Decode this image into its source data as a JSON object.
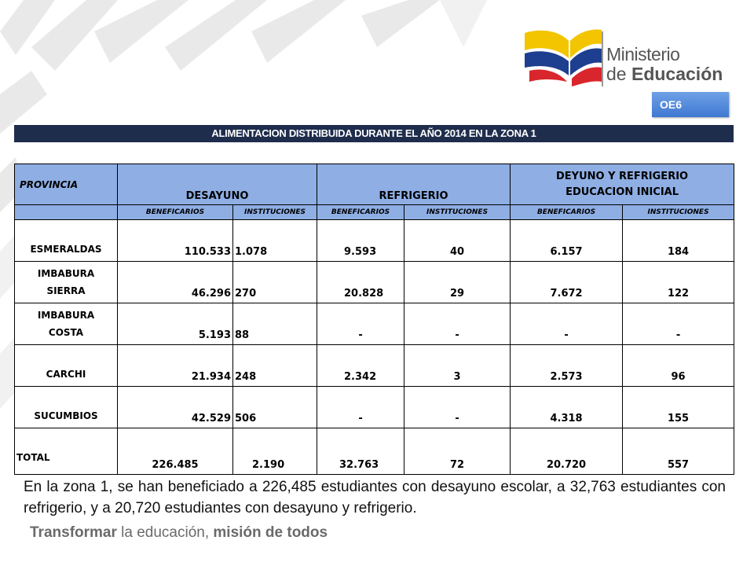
{
  "logo": {
    "line1": "Ministerio",
    "line2_prefix": "de ",
    "line2_bold": "Educación"
  },
  "badge": "OE6",
  "table_title": "ALIMENTACION DISTRIBUIDA DURANTE EL AÑO 2014 EN LA ZONA 1",
  "headers": {
    "provincia": "PROVINCIA",
    "desayuno": "DESAYUNO",
    "refrigerio": "REFRIGERIO",
    "deyuno_line1": "DEYUNO Y REFRIGERIO",
    "deyuno_line2": "EDUCACION INICIAL",
    "beneficiarios": "BENEFICARIOS",
    "instituciones": "INSTITUCIONES"
  },
  "rows": [
    {
      "prov1": "ESMERALDAS",
      "prov2": "",
      "d_ben": "110.533",
      "d_inst": "1.078",
      "r_ben": "9.593",
      "r_inst": "40",
      "e_ben": "6.157",
      "e_inst": "184"
    },
    {
      "prov1": "IMBABURA",
      "prov2": "SIERRA",
      "d_ben": "46.296",
      "d_inst": "270",
      "r_ben": "20.828",
      "r_inst": "29",
      "e_ben": "7.672",
      "e_inst": "122"
    },
    {
      "prov1": "IMBABURA",
      "prov2": "COSTA",
      "d_ben": "5.193",
      "d_inst": "88",
      "r_ben": "-",
      "r_inst": "-",
      "e_ben": "-",
      "e_inst": "-"
    },
    {
      "prov1": "CARCHI",
      "prov2": "",
      "d_ben": "21.934",
      "d_inst": "248",
      "r_ben": "2.342",
      "r_inst": "3",
      "e_ben": "2.573",
      "e_inst": "96"
    },
    {
      "prov1": "SUCUMBIOS",
      "prov2": "",
      "d_ben": "42.529",
      "d_inst": "506",
      "r_ben": "-",
      "r_inst": "-",
      "e_ben": "4.318",
      "e_inst": "155"
    }
  ],
  "total": {
    "label": "TOTAL",
    "d_ben": "226.485",
    "d_inst": "2.190",
    "r_ben": "32.763",
    "r_inst": "72",
    "e_ben": "20.720",
    "e_inst": "557"
  },
  "summary": "En la zona 1, se han beneficiado a 226,485 estudiantes con desayuno escolar, a 32,763 estudiantes con refrigerio, y a 20,720 estudiantes con desayuno y refrigerio.",
  "slogan": {
    "part1": "Transformar",
    "part2": " la educación, ",
    "part3": "misión de todos"
  },
  "colors": {
    "title_bar": "#1f2d4d",
    "header_fill": "#8eaee4",
    "badge": "#4a80d6",
    "logo_yellow": "#f2c500",
    "logo_blue": "#1e3f8f",
    "logo_red": "#d9262c"
  }
}
